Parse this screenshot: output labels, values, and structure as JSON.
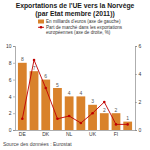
{
  "chart_data": {
    "type": "bar",
    "title": "Exportations de l'UE vers la Norvège",
    "subtitle": "(par Etat membre (2011))",
    "categories": [
      "DE",
      null,
      "DK",
      null,
      "NL",
      null,
      "UK",
      null,
      "FI",
      null
    ],
    "series": [
      {
        "name": "En milliards d'euros (axe de gauche)",
        "type": "bar",
        "color": "#d9822b",
        "data_labels": true,
        "values": [
          8,
          7,
          6,
          5,
          4,
          4,
          3,
          2,
          2,
          1
        ]
      },
      {
        "name": "Part de marché dans les exportations européennes (axe de droite, %)",
        "type": "line",
        "axis": "y2",
        "color": "#c00000",
        "marker": "circle",
        "values": [
          0.8,
          5,
          3,
          0.8,
          1,
          0.5,
          1.2,
          2,
          0.4,
          0.4
        ]
      }
    ],
    "ylim": [
      0,
      10
    ],
    "yticks": [
      0,
      2,
      4,
      6,
      8,
      10
    ],
    "y2lim": [
      0,
      6
    ],
    "y2ticks": [
      0,
      2,
      4,
      6
    ],
    "grid": false,
    "annotations": [
      "Source des données : Eurostat"
    ]
  }
}
